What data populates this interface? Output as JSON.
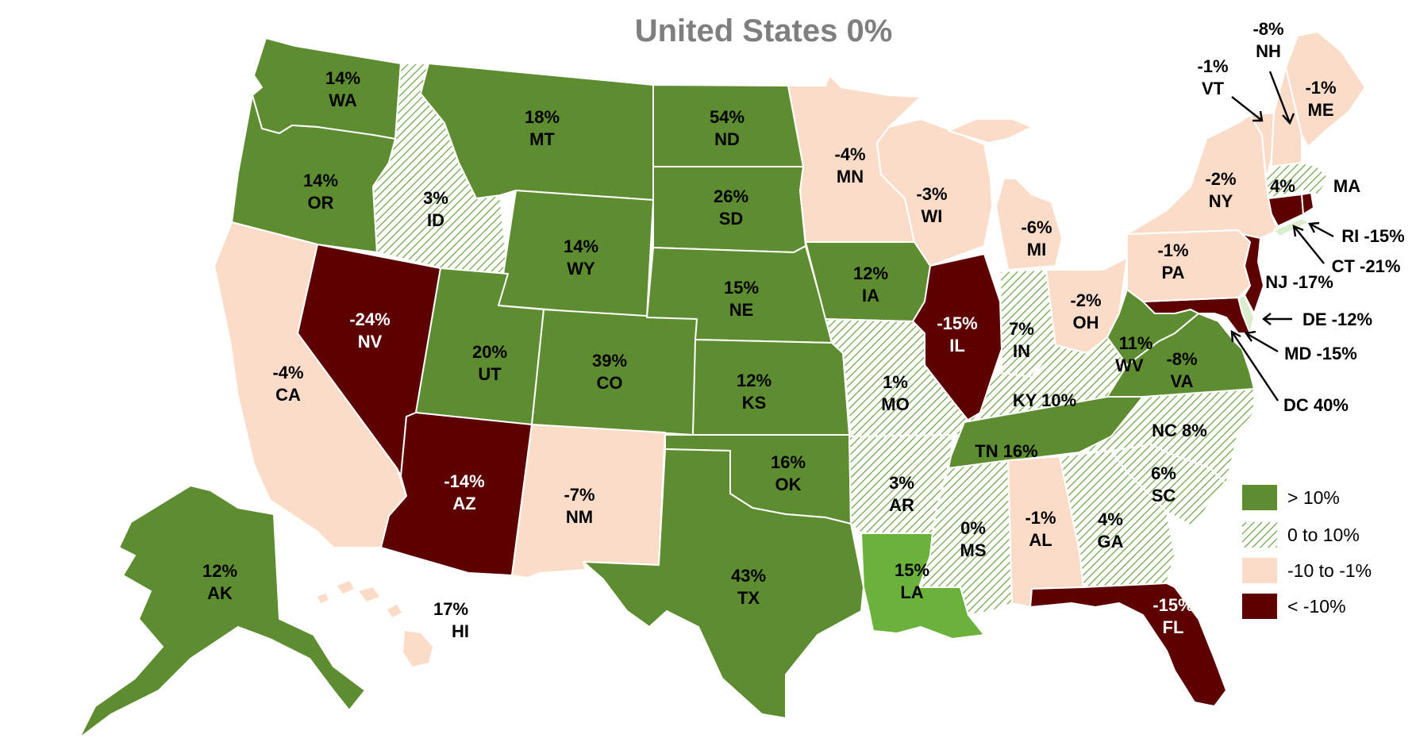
{
  "title": "United States 0%",
  "colors": {
    "gt10": "#5e8c31",
    "zero_to_10": "pattern-hatch",
    "neg10_to_neg1": "#fbdcc8",
    "lt_neg10": "#5c0000",
    "louisiana": "#6ab23c",
    "de_light": "#dbeccf"
  },
  "legend": [
    {
      "key": "gt10",
      "label": "> 10%"
    },
    {
      "key": "zero_to_10",
      "label": "0 to 10%"
    },
    {
      "key": "neg10_to_neg1",
      "label": "-10 to -1%"
    },
    {
      "key": "lt_neg10",
      "label": "< -10%"
    }
  ],
  "states": {
    "WA": {
      "pct": "14%",
      "abbr": "WA"
    },
    "OR": {
      "pct": "14%",
      "abbr": "OR"
    },
    "CA": {
      "pct": "-4%",
      "abbr": "CA"
    },
    "NV": {
      "pct": "-24%",
      "abbr": "NV"
    },
    "ID": {
      "pct": "3%",
      "abbr": "ID"
    },
    "MT": {
      "pct": "18%",
      "abbr": "MT"
    },
    "WY": {
      "pct": "14%",
      "abbr": "WY"
    },
    "UT": {
      "pct": "20%",
      "abbr": "UT"
    },
    "AZ": {
      "pct": "-14%",
      "abbr": "AZ"
    },
    "CO": {
      "pct": "39%",
      "abbr": "CO"
    },
    "NM": {
      "pct": "-7%",
      "abbr": "NM"
    },
    "ND": {
      "pct": "54%",
      "abbr": "ND"
    },
    "SD": {
      "pct": "26%",
      "abbr": "SD"
    },
    "NE": {
      "pct": "15%",
      "abbr": "NE"
    },
    "KS": {
      "pct": "12%",
      "abbr": "KS"
    },
    "OK": {
      "pct": "16%",
      "abbr": "OK"
    },
    "TX": {
      "pct": "43%",
      "abbr": "TX"
    },
    "MN": {
      "pct": "-4%",
      "abbr": "MN"
    },
    "IA": {
      "pct": "12%",
      "abbr": "IA"
    },
    "MO": {
      "pct": "1%",
      "abbr": "MO"
    },
    "AR": {
      "pct": "3%",
      "abbr": "AR"
    },
    "LA": {
      "pct": "15%",
      "abbr": "LA"
    },
    "WI": {
      "pct": "-3%",
      "abbr": "WI"
    },
    "IL": {
      "pct": "-15%",
      "abbr": "IL"
    },
    "MI": {
      "pct": "-6%",
      "abbr": "MI"
    },
    "IN": {
      "pct": "7%",
      "abbr": "IN"
    },
    "OH": {
      "pct": "-2%",
      "abbr": "OH"
    },
    "KY": {
      "text": "KY 10%"
    },
    "TN": {
      "text": "TN 16%"
    },
    "MS": {
      "pct": "0%",
      "abbr": "MS"
    },
    "AL": {
      "pct": "-1%",
      "abbr": "AL"
    },
    "GA": {
      "pct": "4%",
      "abbr": "GA"
    },
    "FL": {
      "pct": "-15%",
      "abbr": "FL"
    },
    "SC": {
      "pct": "6%",
      "abbr": "SC"
    },
    "NC": {
      "text": "NC 8%"
    },
    "VA": {
      "pct": "-8%",
      "abbr": "VA"
    },
    "WV": {
      "pct": "11%",
      "abbr": "WV"
    },
    "PA": {
      "pct": "-1%",
      "abbr": "PA"
    },
    "NY": {
      "pct": "-2%",
      "abbr": "NY"
    },
    "VT": {
      "pct": "-1%",
      "abbr": "VT"
    },
    "NH": {
      "pct": "-8%",
      "abbr": "NH"
    },
    "ME": {
      "pct": "-1%",
      "abbr": "ME"
    },
    "MA": {
      "pct": "4%",
      "abbr": "MA"
    },
    "RI": {
      "text": "RI -15%"
    },
    "CT": {
      "text": "CT -21%"
    },
    "NJ": {
      "text": "NJ -17%"
    },
    "DE": {
      "text": "DE -12%"
    },
    "MD": {
      "text": "MD -15%"
    },
    "DC": {
      "text": "DC 40%"
    },
    "AK": {
      "pct": "12%",
      "abbr": "AK"
    },
    "HI": {
      "pct": "17%",
      "abbr": "HI"
    }
  }
}
